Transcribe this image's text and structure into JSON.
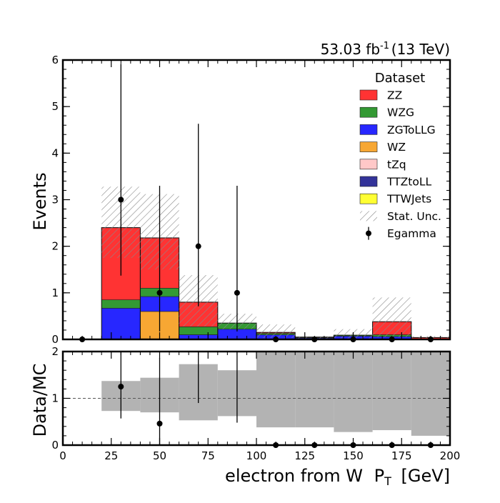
{
  "chart_data": {
    "type": "bar",
    "lumi": "53.03 fb",
    "lumi_exp": "-1",
    "energy": "(13 TeV)",
    "xlabel": "electron from W",
    "xlabel_var": "P",
    "xlabel_sub": "T",
    "xlabel_unit": "[GeV]",
    "xlim": [
      0,
      200
    ],
    "x_ticks": [
      0,
      25,
      50,
      75,
      100,
      125,
      150,
      175,
      200
    ],
    "bin_edges": [
      0,
      20,
      40,
      60,
      80,
      100,
      120,
      140,
      160,
      180,
      200
    ],
    "main": {
      "ylabel": "Events",
      "ylim": [
        0,
        6
      ],
      "y_ticks": [
        0,
        1,
        2,
        3,
        4,
        5,
        6
      ],
      "stack": [
        {
          "name": "TTWJets",
          "color": "#ffff33",
          "values": [
            0,
            0,
            0,
            0,
            0,
            0,
            0,
            0,
            0,
            0
          ]
        },
        {
          "name": "TTZtoLL",
          "color": "#333399",
          "values": [
            0,
            0,
            0,
            0,
            0,
            0,
            0,
            0,
            0,
            0
          ]
        },
        {
          "name": "tZq",
          "color": "#ffc8c8",
          "values": [
            0,
            0,
            0,
            0,
            0,
            0,
            0,
            0,
            0,
            0
          ]
        },
        {
          "name": "WZ",
          "color": "#f7a733",
          "values": [
            0,
            0,
            0.6,
            0,
            0,
            0,
            0,
            0,
            0,
            0
          ]
        },
        {
          "name": "ZGToLLG",
          "color": "#2727ff",
          "values": [
            0,
            0.67,
            0.32,
            0.1,
            0.22,
            0.1,
            0.03,
            0.07,
            0.06,
            0
          ]
        },
        {
          "name": "WZG",
          "color": "#339933",
          "values": [
            0,
            0.18,
            0.18,
            0.17,
            0.13,
            0.03,
            0.01,
            0.02,
            0.04,
            0
          ]
        },
        {
          "name": "ZZ",
          "color": "#ff3333",
          "values": [
            0,
            1.55,
            1.08,
            0.53,
            0,
            0.02,
            0.01,
            0,
            0.28,
            0.04
          ]
        }
      ],
      "stat_unc": [
        {
          "low": 0,
          "high": 0
        },
        {
          "low": 1.75,
          "high": 3.28
        },
        {
          "low": 1.5,
          "high": 3.12
        },
        {
          "low": 0.28,
          "high": 1.38
        },
        {
          "low": 0.22,
          "high": 0.55
        },
        {
          "low": 0.03,
          "high": 0.32
        },
        {
          "low": 0,
          "high": 0.06
        },
        {
          "low": 0,
          "high": 0.22
        },
        {
          "low": 0.05,
          "high": 0.9
        },
        {
          "low": 0,
          "high": 0.07
        }
      ],
      "data_x": [
        10,
        30,
        50,
        70,
        90,
        110,
        130,
        150,
        170,
        190
      ],
      "data_y": [
        0,
        3,
        1,
        2,
        1,
        0,
        0,
        0,
        0,
        0
      ],
      "data_err_low": [
        0,
        1.63,
        0.83,
        1.29,
        0.83,
        0,
        0,
        0,
        0,
        0
      ],
      "data_err_high": [
        0,
        2.92,
        2.3,
        2.63,
        2.3,
        0,
        0,
        0,
        0,
        0
      ]
    },
    "ratio": {
      "ylabel": "Data/MC",
      "ylim": [
        0,
        2
      ],
      "y_ticks": [
        0,
        1,
        2
      ],
      "ref_line": 1,
      "unc_band": [
        {
          "low": 0,
          "high": 0
        },
        {
          "low": 0.73,
          "high": 1.37
        },
        {
          "low": 0.7,
          "high": 1.44
        },
        {
          "low": 0.53,
          "high": 1.73
        },
        {
          "low": 0.62,
          "high": 1.6
        },
        {
          "low": 0.38,
          "high": 2
        },
        {
          "low": 0.38,
          "high": 2
        },
        {
          "low": 0.28,
          "high": 2
        },
        {
          "low": 0.32,
          "high": 2
        },
        {
          "low": 0.2,
          "high": 2
        }
      ],
      "points_x": [
        30,
        50,
        70,
        90,
        110,
        130,
        150,
        170,
        190
      ],
      "points_y": [
        1.25,
        0.46,
        null,
        null,
        0,
        0,
        0,
        0,
        0
      ],
      "err_low": [
        0.68,
        0.46,
        0,
        0,
        0,
        0,
        0,
        0,
        0
      ],
      "err_high": [
        1.4,
        1.4,
        0,
        0,
        0,
        0,
        0,
        0,
        0
      ],
      "bars_x": [
        70,
        90
      ],
      "bars_low": [
        0.9,
        0.48
      ],
      "bars_high": [
        2.0,
        2.0
      ]
    },
    "legend": {
      "title": "Dataset",
      "placement": "top-right",
      "entries": [
        {
          "label": "ZZ",
          "kind": "fill",
          "color": "#ff3333"
        },
        {
          "label": "WZG",
          "kind": "fill",
          "color": "#339933"
        },
        {
          "label": "ZGToLLG",
          "kind": "fill",
          "color": "#2727ff"
        },
        {
          "label": "WZ",
          "kind": "fill",
          "color": "#f7a733"
        },
        {
          "label": "tZq",
          "kind": "fill",
          "color": "#ffc8c8"
        },
        {
          "label": "TTZtoLL",
          "kind": "fill",
          "color": "#333399"
        },
        {
          "label": "TTWJets",
          "kind": "fill",
          "color": "#ffff33"
        },
        {
          "label": "Stat. Unc.",
          "kind": "hatch",
          "color": "#888888"
        },
        {
          "label": "Egamma",
          "kind": "marker",
          "color": "#000000"
        }
      ]
    }
  }
}
